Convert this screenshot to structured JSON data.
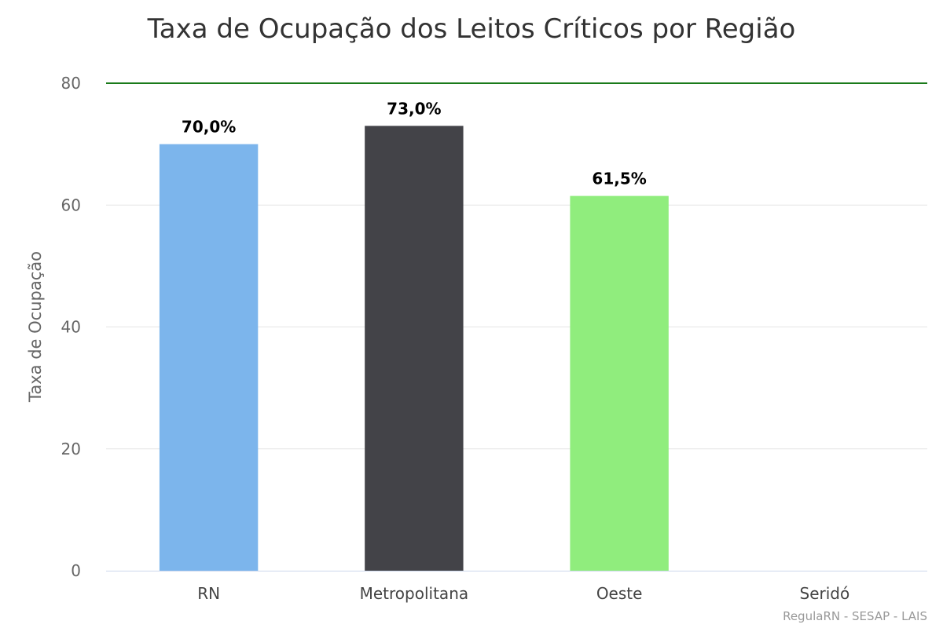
{
  "chart_data": {
    "type": "bar",
    "title": "Taxa de Ocupação dos Leitos Críticos por Região",
    "ylabel": "Taxa de Ocupação",
    "xlabel": "",
    "categories": [
      "RN",
      "Metropolitana",
      "Oeste",
      "Seridó"
    ],
    "values": [
      70.0,
      73.0,
      61.5,
      null
    ],
    "data_labels": [
      "70,0%",
      "73,0%",
      "61,5%",
      ""
    ],
    "colors": [
      "#7cb5ec",
      "#434348",
      "#90ed7d",
      "#f7a35c"
    ],
    "ylim": [
      0,
      80
    ],
    "yticks": [
      0,
      20,
      40,
      60,
      80
    ],
    "grid": true,
    "plot_line": {
      "value": 80,
      "color": "#1a7a1a"
    },
    "legend": "none"
  },
  "credits": "RegulaRN - SESAP - LAIS"
}
